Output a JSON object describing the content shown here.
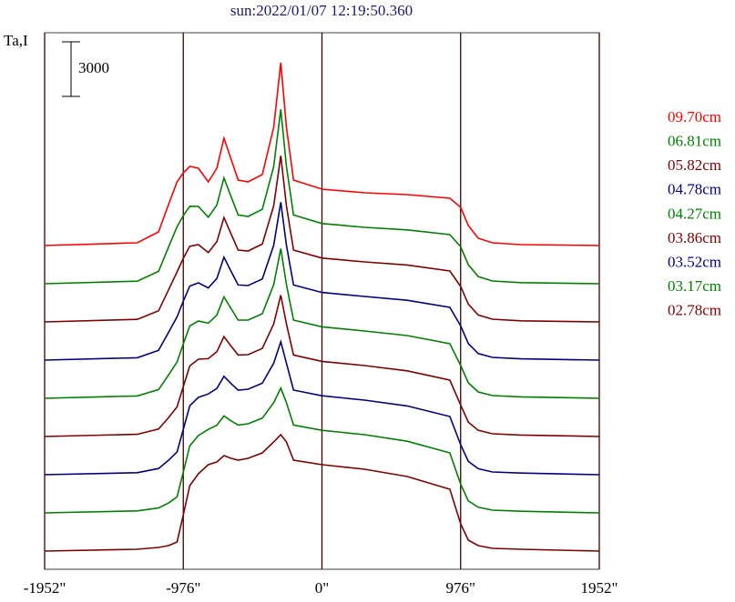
{
  "chart_data": {
    "type": "line",
    "title": "sun:2022/01/07 12:19:50.360",
    "y_label": "Ta,I",
    "scale_bar": 3000,
    "grid": true,
    "xlim": [
      -1952,
      1952
    ],
    "ylim": [
      0,
      29500
    ],
    "xticks": [
      {
        "value": -1952,
        "label": "-1952\""
      },
      {
        "value": -976,
        "label": "-976\""
      },
      {
        "value": 0,
        "label": "0\""
      },
      {
        "value": 976,
        "label": "976\""
      },
      {
        "value": 1952,
        "label": "1952\""
      }
    ],
    "x": [
      -1952,
      -1300,
      -1150,
      -1080,
      -1020,
      -976,
      -930,
      -870,
      -800,
      -740,
      -690,
      -640,
      -590,
      -520,
      -420,
      -340,
      -290,
      -250,
      -200,
      0,
      300,
      600,
      900,
      976,
      1030,
      1100,
      1200,
      1400,
      1952
    ],
    "series": [
      {
        "name": "09.70cm",
        "color": "#ff0000",
        "values": [
          17800,
          17950,
          18550,
          20050,
          21300,
          21800,
          22150,
          22050,
          21300,
          22050,
          23700,
          22550,
          21400,
          21300,
          21700,
          24300,
          27850,
          24300,
          21400,
          20900,
          20700,
          20600,
          20400,
          19900,
          18900,
          18200,
          17950,
          17850,
          17800
        ]
      },
      {
        "name": "06.81cm",
        "color": "#008000",
        "values": [
          15700,
          15840,
          16380,
          17710,
          18830,
          19450,
          19960,
          19950,
          19360,
          20030,
          21520,
          20490,
          19480,
          19400,
          19790,
          22140,
          25290,
          22140,
          19480,
          19010,
          18800,
          18660,
          18400,
          17730,
          16740,
          16090,
          15850,
          15760,
          15700
        ]
      },
      {
        "name": "05.82cm",
        "color": "#800000",
        "values": [
          13600,
          13740,
          14210,
          15360,
          16350,
          17100,
          17760,
          17850,
          17410,
          18010,
          19340,
          18440,
          17550,
          17500,
          17880,
          19980,
          22740,
          19980,
          17550,
          17110,
          16900,
          16730,
          16400,
          15550,
          14580,
          13980,
          13750,
          13660,
          13600
        ]
      },
      {
        "name": "04.78cm",
        "color": "#000080",
        "values": [
          11500,
          11630,
          12040,
          13020,
          13880,
          14750,
          15570,
          15750,
          15470,
          15990,
          17160,
          16380,
          15630,
          15600,
          15960,
          17810,
          20180,
          17810,
          15630,
          15220,
          15000,
          14790,
          14400,
          13380,
          12410,
          11860,
          11650,
          11570,
          11500
        ]
      },
      {
        "name": "04.27cm",
        "color": "#008000",
        "values": [
          9400,
          9530,
          9880,
          10680,
          11400,
          12400,
          13380,
          13650,
          13530,
          13980,
          14980,
          14330,
          13700,
          13700,
          14050,
          15650,
          17630,
          15650,
          13700,
          13330,
          13100,
          12850,
          12400,
          11200,
          10250,
          9750,
          9550,
          9480,
          9400
        ]
      },
      {
        "name": "03.86cm",
        "color": "#800000",
        "values": [
          7300,
          7420,
          7710,
          8330,
          8930,
          10050,
          11180,
          11550,
          11580,
          11960,
          12790,
          12270,
          11780,
          11800,
          12140,
          13490,
          15070,
          13490,
          11780,
          11430,
          11200,
          10910,
          10400,
          9030,
          8090,
          7640,
          7450,
          7380,
          7300
        ]
      },
      {
        "name": "03.52cm",
        "color": "#000080",
        "values": [
          5200,
          5310,
          5540,
          5990,
          6450,
          7700,
          8990,
          9450,
          9640,
          9940,
          10610,
          10210,
          9850,
          9900,
          10230,
          11330,
          12510,
          11330,
          9850,
          9540,
          9300,
          8980,
          8400,
          6850,
          5930,
          5530,
          5350,
          5290,
          5200
        ]
      },
      {
        "name": "03.17cm",
        "color": "#008000",
        "values": [
          3100,
          3210,
          3370,
          3640,
          3980,
          5350,
          6790,
          7350,
          7690,
          7920,
          8430,
          8160,
          7930,
          8000,
          8310,
          9160,
          9960,
          9160,
          7930,
          7640,
          7400,
          7040,
          6400,
          4680,
          3760,
          3410,
          3250,
          3190,
          3100
        ]
      },
      {
        "name": "02.78cm",
        "color": "#800000",
        "values": [
          1000,
          1100,
          1200,
          1300,
          1500,
          3000,
          4600,
          5250,
          5750,
          5900,
          6250,
          6100,
          6000,
          6100,
          6400,
          7000,
          7400,
          7000,
          6000,
          5750,
          5500,
          5100,
          4400,
          2500,
          1600,
          1300,
          1150,
          1100,
          1000
        ]
      }
    ]
  }
}
